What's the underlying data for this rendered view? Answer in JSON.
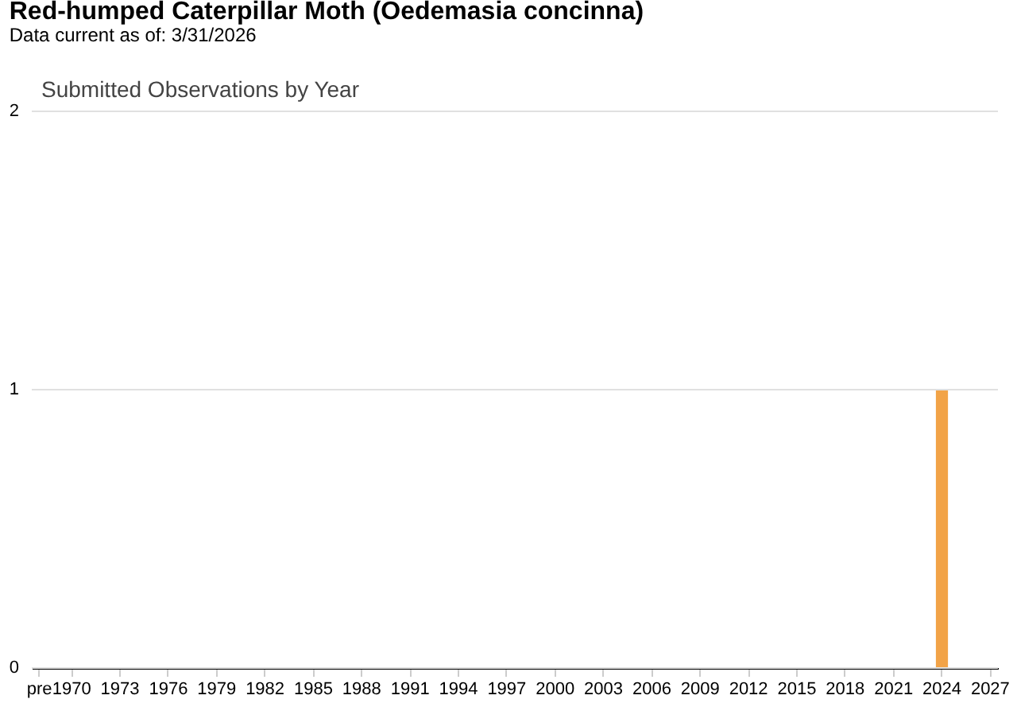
{
  "chart_data": {
    "type": "bar",
    "title": "Red-humped Caterpillar Moth   (Oedemasia concinna)",
    "subtitle": "Data current as of: 3/31/2026",
    "annotations": [
      "Submitted Observations by Year"
    ],
    "categories": [
      "pre",
      null,
      "1970",
      null,
      null,
      "1973",
      null,
      null,
      "1976",
      null,
      null,
      "1979",
      null,
      null,
      "1982",
      null,
      null,
      "1985",
      null,
      null,
      "1988",
      null,
      null,
      "1991",
      null,
      null,
      "1994",
      null,
      null,
      "1997",
      null,
      null,
      "2000",
      null,
      null,
      "2003",
      null,
      null,
      "2006",
      null,
      null,
      "2009",
      null,
      null,
      "2012",
      null,
      null,
      "2015",
      null,
      null,
      "2018",
      null,
      null,
      "2021",
      null,
      null,
      "2024",
      null,
      null,
      "2027"
    ],
    "values": [
      0,
      0,
      0,
      0,
      0,
      0,
      0,
      0,
      0,
      0,
      0,
      0,
      0,
      0,
      0,
      0,
      0,
      0,
      0,
      0,
      0,
      0,
      0,
      0,
      0,
      0,
      0,
      0,
      0,
      0,
      0,
      0,
      0,
      0,
      0,
      0,
      0,
      0,
      0,
      0,
      0,
      0,
      0,
      0,
      0,
      0,
      0,
      0,
      0,
      0,
      0,
      0,
      0,
      0,
      0,
      0,
      1,
      0,
      0,
      0
    ],
    "color": "#f2a347",
    "ylim": [
      0,
      2
    ],
    "yticks": [
      0,
      1,
      2
    ],
    "grid": "y"
  }
}
